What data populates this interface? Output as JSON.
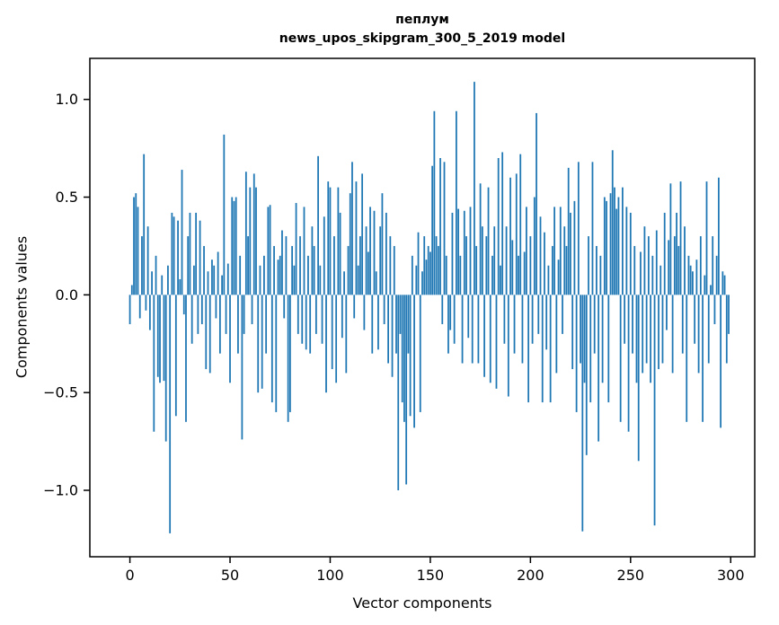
{
  "chart_data": {
    "type": "bar",
    "title": "пеплум",
    "subtitle": "news_upos_skipgram_300_5_2019 model",
    "xlabel": "Vector components",
    "ylabel": "Components values",
    "legend": null,
    "grid": false,
    "bar_color": "#1f77b4",
    "bar_width": 0.8,
    "x_start": 0,
    "xlim": [
      -20,
      312
    ],
    "ylim": [
      -1.34,
      1.21
    ],
    "xticks": [
      {
        "v": 0,
        "label": "0"
      },
      {
        "v": 50,
        "label": "50"
      },
      {
        "v": 100,
        "label": "100"
      },
      {
        "v": 150,
        "label": "150"
      },
      {
        "v": 200,
        "label": "200"
      },
      {
        "v": 250,
        "label": "250"
      },
      {
        "v": 300,
        "label": "300"
      }
    ],
    "yticks": [
      {
        "v": -1.0,
        "label": "−1.0"
      },
      {
        "v": -0.5,
        "label": "−0.5"
      },
      {
        "v": 0.0,
        "label": "0.0"
      },
      {
        "v": 0.5,
        "label": "0.5"
      },
      {
        "v": 1.0,
        "label": "1.0"
      }
    ],
    "values": [
      -0.15,
      0.05,
      0.5,
      0.52,
      0.45,
      -0.12,
      0.3,
      0.72,
      -0.08,
      0.35,
      -0.18,
      0.12,
      -0.7,
      0.2,
      -0.42,
      -0.45,
      0.1,
      -0.44,
      -0.75,
      0.15,
      -1.22,
      0.42,
      0.4,
      -0.62,
      0.38,
      0.08,
      0.64,
      -0.1,
      -0.65,
      0.3,
      0.42,
      -0.25,
      0.15,
      0.42,
      -0.2,
      0.38,
      -0.15,
      0.25,
      -0.38,
      0.12,
      -0.4,
      0.18,
      0.15,
      -0.12,
      0.22,
      -0.3,
      0.1,
      0.82,
      -0.2,
      0.16,
      -0.45,
      0.5,
      0.48,
      0.5,
      -0.3,
      0.2,
      -0.74,
      -0.2,
      0.63,
      0.3,
      0.55,
      -0.15,
      0.62,
      0.55,
      -0.5,
      0.15,
      -0.48,
      0.2,
      -0.3,
      0.45,
      0.46,
      -0.55,
      0.25,
      -0.6,
      0.18,
      0.2,
      0.33,
      -0.12,
      0.3,
      -0.65,
      -0.6,
      0.25,
      0.15,
      0.47,
      -0.2,
      0.3,
      -0.25,
      0.45,
      -0.28,
      0.2,
      -0.3,
      0.35,
      0.25,
      -0.2,
      0.71,
      0.15,
      -0.25,
      0.4,
      -0.5,
      0.58,
      0.55,
      -0.38,
      0.3,
      -0.45,
      0.55,
      0.42,
      -0.22,
      0.12,
      -0.4,
      0.25,
      0.52,
      0.68,
      -0.12,
      0.58,
      0.15,
      0.3,
      0.62,
      -0.18,
      0.35,
      0.22,
      0.45,
      -0.3,
      0.43,
      0.12,
      -0.28,
      0.35,
      0.52,
      -0.15,
      0.42,
      -0.35,
      0.3,
      -0.42,
      0.25,
      -0.3,
      -1.0,
      -0.2,
      -0.55,
      -0.65,
      -0.97,
      -0.3,
      -0.62,
      0.2,
      -0.68,
      0.15,
      0.32,
      -0.6,
      0.12,
      0.3,
      0.18,
      0.25,
      0.22,
      0.66,
      0.94,
      0.3,
      0.25,
      0.7,
      -0.15,
      0.68,
      0.2,
      -0.3,
      -0.18,
      0.42,
      -0.25,
      0.94,
      0.44,
      0.2,
      -0.35,
      0.43,
      0.3,
      -0.22,
      0.45,
      -0.35,
      1.09,
      0.25,
      -0.35,
      0.57,
      0.35,
      -0.42,
      0.3,
      0.55,
      -0.45,
      0.2,
      0.35,
      -0.48,
      0.7,
      0.15,
      0.73,
      -0.25,
      0.35,
      -0.52,
      0.6,
      0.28,
      -0.3,
      0.62,
      0.2,
      0.72,
      -0.35,
      0.22,
      0.45,
      -0.55,
      0.3,
      -0.25,
      0.5,
      0.93,
      -0.2,
      0.4,
      -0.55,
      0.32,
      -0.28,
      0.15,
      -0.55,
      0.25,
      0.45,
      -0.4,
      0.18,
      0.45,
      -0.2,
      0.35,
      0.25,
      0.65,
      0.42,
      -0.38,
      0.48,
      -0.6,
      0.68,
      -0.35,
      -1.21,
      -0.45,
      -0.82,
      0.3,
      -0.55,
      0.68,
      -0.3,
      0.25,
      -0.75,
      0.2,
      -0.45,
      0.5,
      0.48,
      -0.55,
      0.52,
      0.74,
      0.55,
      0.44,
      0.5,
      -0.65,
      0.55,
      -0.25,
      0.45,
      -0.7,
      0.42,
      -0.3,
      0.25,
      -0.45,
      -0.85,
      0.22,
      -0.4,
      0.35,
      -0.35,
      0.3,
      -0.45,
      0.2,
      -1.18,
      0.33,
      -0.38,
      0.15,
      -0.35,
      0.42,
      -0.18,
      0.28,
      0.57,
      -0.4,
      0.3,
      0.42,
      0.25,
      0.58,
      -0.3,
      0.35,
      -0.65,
      0.2,
      0.15,
      0.12,
      -0.25,
      0.18,
      -0.4,
      0.3,
      -0.65,
      0.1,
      0.58,
      -0.35,
      0.05,
      0.3,
      -0.15,
      0.2,
      0.6,
      -0.68,
      0.12,
      0.1,
      -0.35,
      -0.2
    ]
  }
}
